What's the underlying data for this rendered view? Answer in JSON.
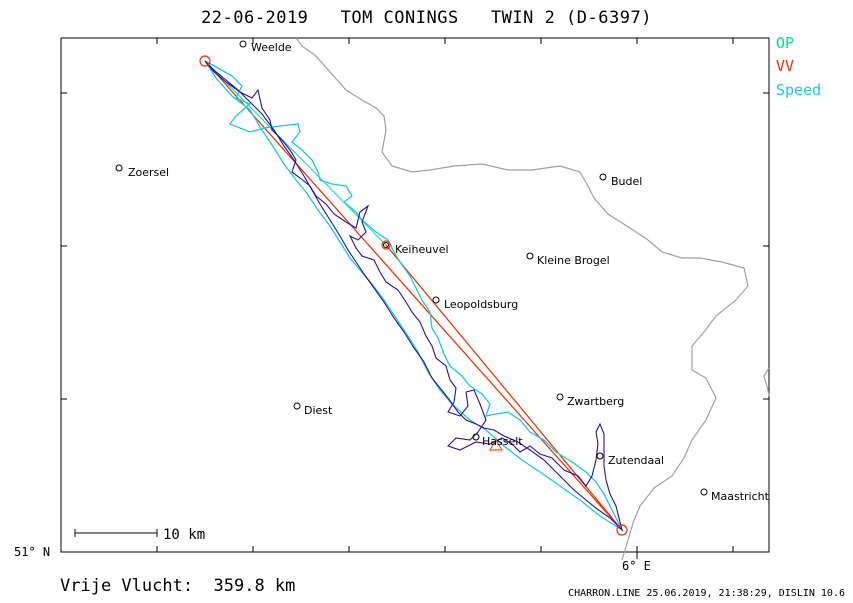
{
  "title": "22-06-2019   TOM CONINGS   TWIN 2 (D-6397)",
  "legend": [
    {
      "label": "OP",
      "color": "#00e08a"
    },
    {
      "label": "VV",
      "color": "#ff2a00"
    },
    {
      "label": "Speed",
      "color": "#19c8e6"
    }
  ],
  "axes": {
    "lat_label": "51° N",
    "lon_label": "6° E"
  },
  "scale_bar": {
    "label": "10 km"
  },
  "towns": [
    {
      "id": "weelde",
      "name": "Weelde"
    },
    {
      "id": "zoersel",
      "name": "Zoersel"
    },
    {
      "id": "budel",
      "name": "Budel"
    },
    {
      "id": "keiheuvel",
      "name": "Keiheuvel"
    },
    {
      "id": "kleine-brogel",
      "name": "Kleine Brogel"
    },
    {
      "id": "leopoldsburg",
      "name": "Leopoldsburg"
    },
    {
      "id": "zwartberg",
      "name": "Zwartberg"
    },
    {
      "id": "diest",
      "name": "Diest"
    },
    {
      "id": "hasselt",
      "name": "Hasselt"
    },
    {
      "id": "zutendaal",
      "name": "Zutendaal"
    },
    {
      "id": "maastricht",
      "name": "Maastricht"
    }
  ],
  "footer": {
    "distance": "Vrije Vlucht:  359.8 km",
    "credit": "CHARRON.LINE 25.06.2019, 21:38:29, DISLIN 10.6"
  },
  "colors": {
    "track": "#2a10a0",
    "speed_track": "#19c8e6",
    "op_line": "#00e08a",
    "vv_line": "#ff2a00",
    "border": "#a0a0a0"
  }
}
